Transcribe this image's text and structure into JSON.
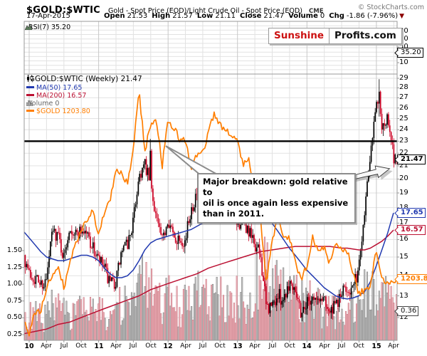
{
  "header": {
    "symbol": "$GOLD:$WTIC",
    "description": "Gold - Spot Price (EOD)/Light Crude Oil - Spot Price (EOD)",
    "exchange": "CME",
    "copyright": "© StockCharts.com",
    "date": "17-Apr-2015",
    "quote": {
      "open_label": "Open",
      "open": "21.53",
      "high_label": "High",
      "high": "21.57",
      "low_label": "Low",
      "low": "21.11",
      "close_label": "Close",
      "close": "21.47",
      "volume_label": "Volume",
      "volume": "0",
      "chg_label": "Chg",
      "chg": "-1.86 (-7.96%)",
      "chg_direction_icon": "▼"
    }
  },
  "logo": {
    "left": "Sunshine",
    "right": "Profits.com"
  },
  "rsi_panel": {
    "label": "RSI(7) 35.20",
    "value": 35.2,
    "axis_labels": [
      90,
      70,
      50,
      10
    ],
    "bubble": "35.20"
  },
  "main_panel": {
    "title": "$GOLD:$WTIC (Weekly) 21.47",
    "legend": [
      {
        "label": "MA(50) 17.65",
        "color": "#2139b0"
      },
      {
        "label": "MA(200) 16.57",
        "color": "#bb1133"
      },
      {
        "label": "Volume 0",
        "color": "#777777"
      },
      {
        "label": "$GOLD 1203.80",
        "color": "#ff7e00"
      }
    ],
    "bubbles": {
      "close": "21.47",
      "ma50": "17.65",
      "ma200": "16.57",
      "gold": "1203.80",
      "volume": "0.36"
    },
    "annotation": {
      "lines": [
        "Major breakdown: gold relative to",
        "oil is once again less expensive",
        "than in 2011."
      ]
    }
  },
  "x_axis": {
    "labels": [
      "10",
      "Apr",
      "Jul",
      "Oct",
      "11",
      "Apr",
      "Jul",
      "Oct",
      "12",
      "Apr",
      "Jul",
      "Oct",
      "13",
      "Apr",
      "Jul",
      "Oct",
      "14",
      "Apr",
      "Jul",
      "Oct",
      "15",
      "Apr"
    ]
  },
  "colors": {
    "candle_up": "#000000",
    "candle_down": "#cc0022",
    "ma50": "#2139b0",
    "ma200": "#bb1133",
    "gold": "#ff7e00",
    "vol_up_fill": "#c9c9c9",
    "vol_up_stroke": "#777777",
    "vol_down_fill": "#f0b6bc",
    "vol_down_stroke": "#c4717e",
    "grid": "#e2e2e2",
    "grid_year": "#c8c8c8",
    "frame": "#999999",
    "trendline": "#000000"
  },
  "chart_data": {
    "type": "candlestick",
    "symbol": "$GOLD:$WTIC",
    "timeframe": "weekly",
    "x_range": [
      "Dec-2009",
      "17-Apr-2015"
    ],
    "ylim": [
      12,
      29
    ],
    "log_scale": true,
    "y_ticks": [
      29,
      28,
      27,
      26,
      25,
      24,
      23,
      22,
      21,
      20,
      19,
      18,
      17,
      16,
      15,
      14,
      13,
      12
    ],
    "volume_axis_ticks": [
      "1.50",
      "1.25",
      "1.00",
      "0.75",
      "0.50",
      "0.25"
    ],
    "trendline_level": 23,
    "last_candle": {
      "open": 21.53,
      "high": 21.57,
      "low": 21.11,
      "close": 21.47
    },
    "rsi7": 35.2,
    "months_start": "2009-12",
    "ratio_monthly": [
      15.2,
      14.1,
      13.9,
      13.6,
      13.7,
      16.5,
      16.3,
      14.9,
      16.9,
      16.3,
      16.6,
      16.4,
      15.5,
      14.8,
      14.4,
      13.5,
      13.7,
      15.3,
      15.7,
      17.1,
      20.3,
      21.0,
      19.5,
      17.4,
      15.8,
      17.4,
      16.0,
      16.2,
      15.9,
      18.0,
      18.9,
      18.4,
      17.5,
      19.2,
      19.9,
      19.3,
      18.2,
      17.0,
      17.1,
      16.4,
      15.7,
      15.1,
      12.4,
      12.5,
      13.0,
      12.9,
      13.7,
      13.5,
      12.2,
      12.7,
      13.0,
      12.7,
      13.0,
      12.2,
      12.5,
      13.1,
      13.4,
      13.3,
      14.4,
      17.8,
      22.2,
      26.7,
      24.4,
      24.9,
      21.6
    ],
    "ma50_monthly": [
      16.5,
      16.1,
      15.7,
      15.3,
      15.0,
      14.9,
      14.8,
      14.8,
      14.9,
      15.0,
      15.1,
      15.1,
      15.0,
      14.8,
      14.4,
      14.1,
      13.9,
      13.9,
      14.0,
      14.3,
      14.8,
      15.4,
      15.8,
      16.0,
      16.1,
      16.2,
      16.3,
      16.4,
      16.5,
      16.6,
      16.8,
      17.0,
      17.2,
      17.5,
      17.7,
      17.9,
      18.0,
      18.1,
      18.2,
      18.2,
      18.1,
      17.9,
      17.5,
      17.0,
      16.5,
      16.0,
      15.5,
      15.1,
      14.7,
      14.3,
      14.0,
      13.7,
      13.4,
      13.2,
      13.0,
      12.9,
      12.85,
      12.9,
      13.0,
      13.2,
      13.7,
      14.5,
      15.4,
      16.4,
      17.65
    ],
    "ma200_monthly": [
      11.3,
      11.35,
      11.4,
      11.45,
      11.5,
      11.6,
      11.7,
      11.75,
      11.8,
      11.9,
      12.0,
      12.1,
      12.2,
      12.3,
      12.4,
      12.5,
      12.6,
      12.7,
      12.8,
      12.9,
      13.0,
      13.15,
      13.3,
      13.4,
      13.5,
      13.6,
      13.7,
      13.8,
      13.9,
      14.0,
      14.1,
      14.25,
      14.4,
      14.5,
      14.6,
      14.7,
      14.8,
      14.9,
      15.0,
      15.1,
      15.2,
      15.3,
      15.35,
      15.4,
      15.45,
      15.5,
      15.55,
      15.6,
      15.6,
      15.6,
      15.6,
      15.6,
      15.6,
      15.6,
      15.55,
      15.5,
      15.5,
      15.45,
      15.4,
      15.4,
      15.5,
      15.7,
      15.9,
      16.2,
      16.57
    ],
    "gold_monthly": [
      1097,
      1055,
      1118,
      1114,
      1180,
      1215,
      1244,
      1181,
      1248,
      1310,
      1346,
      1385,
      1421,
      1327,
      1411,
      1439,
      1556,
      1536,
      1502,
      1628,
      1862,
      1620,
      1725,
      1746,
      1566,
      1737,
      1711,
      1668,
      1664,
      1560,
      1604,
      1615,
      1691,
      1771,
      1719,
      1715,
      1676,
      1661,
      1576,
      1598,
      1469,
      1387,
      1192,
      1312,
      1396,
      1327,
      1323,
      1253,
      1202,
      1240,
      1326,
      1284,
      1296,
      1250,
      1315,
      1285,
      1287,
      1216,
      1164,
      1175,
      1184,
      1283,
      1213,
      1187,
      1203.8
    ],
    "volume_envelope_monthly": [
      0.5,
      0.5,
      0.55,
      0.5,
      0.55,
      0.65,
      0.6,
      0.55,
      0.6,
      0.6,
      0.6,
      0.6,
      0.55,
      0.6,
      0.6,
      0.65,
      0.6,
      0.7,
      0.7,
      0.7,
      1.0,
      1.05,
      0.9,
      0.8,
      0.75,
      0.8,
      0.75,
      0.7,
      0.7,
      0.85,
      0.9,
      0.8,
      0.75,
      0.8,
      0.8,
      0.75,
      0.7,
      0.8,
      0.8,
      0.75,
      1.1,
      1.2,
      1.3,
      1.1,
      1.0,
      0.9,
      0.85,
      0.8,
      0.75,
      0.8,
      0.75,
      0.7,
      0.65,
      0.6,
      0.6,
      0.6,
      0.6,
      0.65,
      0.75,
      0.85,
      0.9,
      0.9,
      0.85,
      0.8,
      0.75
    ],
    "spikes": [
      {
        "week": 91,
        "high": 23.2,
        "close": 22.2
      },
      {
        "week": 263,
        "high": 28.9,
        "close": 27.6
      }
    ]
  }
}
